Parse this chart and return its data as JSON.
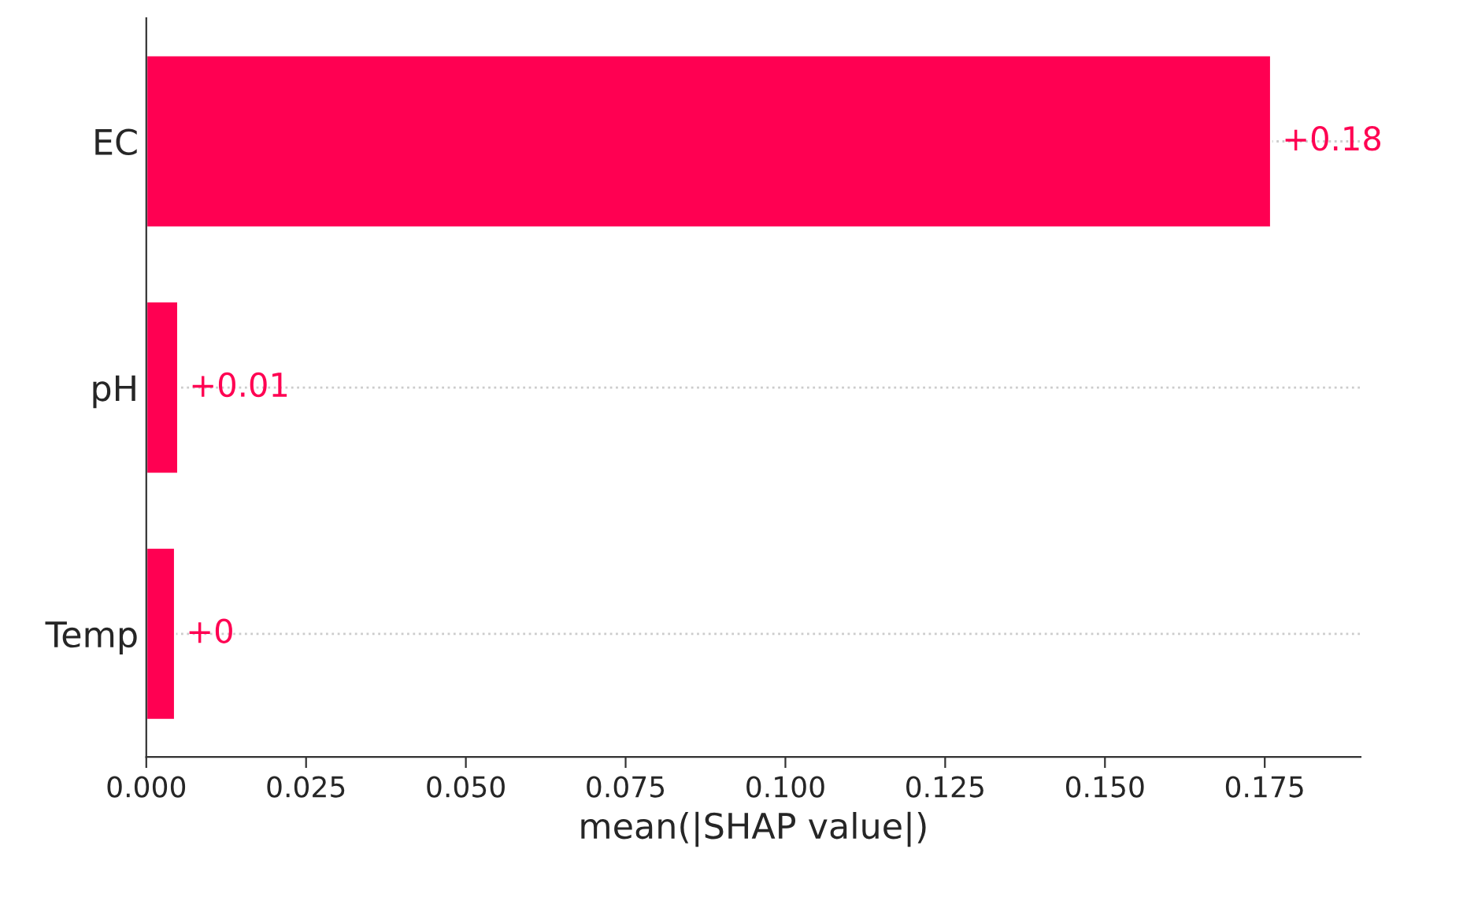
{
  "chart_data": {
    "type": "bar",
    "orientation": "horizontal",
    "xlabel": "mean(|SHAP value|)",
    "categories": [
      "EC",
      "pH",
      "Temp"
    ],
    "values": [
      0.176,
      0.005,
      0.0045
    ],
    "value_labels": [
      "+0.18",
      "+0.01",
      "+0"
    ],
    "color": "#ff0052",
    "xlim": [
      0,
      0.19
    ],
    "xticks": [
      {
        "value": 0,
        "label": "0.000"
      },
      {
        "value": 0.025,
        "label": "0.025"
      },
      {
        "value": 0.05,
        "label": "0.050"
      },
      {
        "value": 0.075,
        "label": "0.075"
      },
      {
        "value": 0.1,
        "label": "0.100"
      },
      {
        "value": 0.125,
        "label": "0.125"
      },
      {
        "value": 0.15,
        "label": "0.150"
      },
      {
        "value": 0.175,
        "label": "0.175"
      }
    ],
    "grid": "y",
    "line_style": "dotted"
  }
}
